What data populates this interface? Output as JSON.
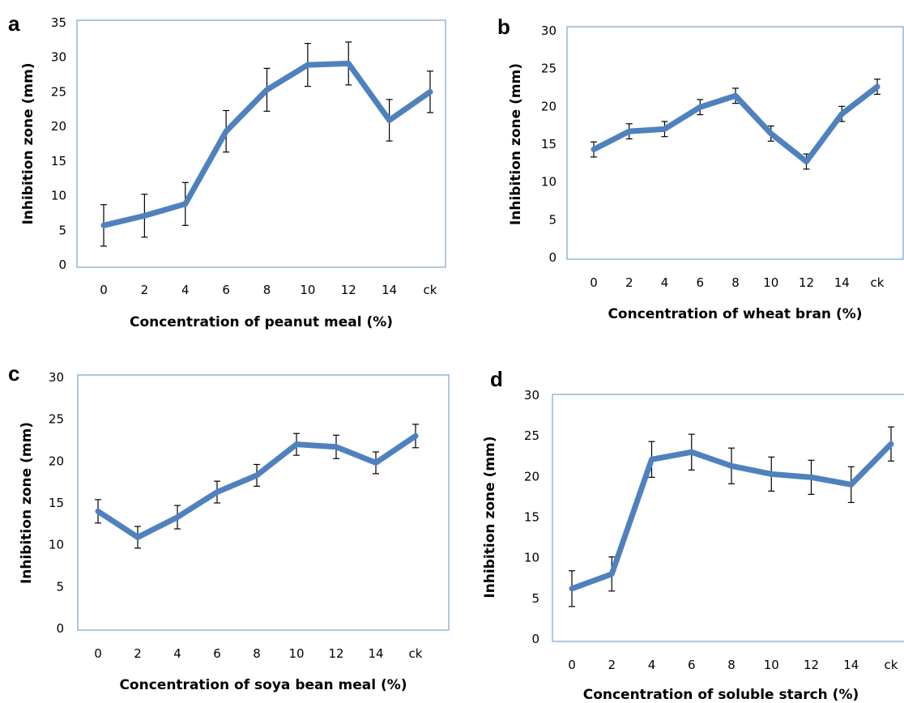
{
  "figure": {
    "line_color": "#4f81bd",
    "frame_color": "#7aa3cf",
    "error_bar_color": "#000000"
  },
  "chart_data": [
    {
      "panel": "a",
      "type": "line",
      "categories": [
        "0",
        "2",
        "4",
        "6",
        "8",
        "10",
        "12",
        "14",
        "ck"
      ],
      "series": [
        {
          "values": [
            5.7,
            7.1,
            8.8,
            19.3,
            25.3,
            28.9,
            29.1,
            20.9,
            25.0
          ],
          "errors": [
            3.0,
            3.1,
            3.1,
            3.0,
            3.1,
            3.1,
            3.1,
            3.0,
            3.0
          ]
        }
      ],
      "xlabel": "Concentration of peanut meal (%)",
      "ylabel": "Inhibition zone (mm)",
      "ylim": [
        0,
        35
      ],
      "yticks": [
        0,
        5,
        10,
        15,
        20,
        25,
        30,
        35
      ],
      "grid": false
    },
    {
      "panel": "b",
      "type": "line",
      "categories": [
        "0",
        "2",
        "4",
        "6",
        "8",
        "10",
        "12",
        "14",
        "ck"
      ],
      "series": [
        {
          "values": [
            14.3,
            16.7,
            17.0,
            19.9,
            21.4,
            16.4,
            12.7,
            19.0,
            22.6
          ],
          "errors": [
            1.0,
            1.0,
            1.0,
            1.0,
            1.0,
            1.0,
            1.0,
            1.0,
            1.0
          ]
        }
      ],
      "xlabel": "Concentration of wheat bran  (%)",
      "ylabel": "Inhibition zone (mm)",
      "ylim": [
        0,
        30
      ],
      "yticks": [
        0,
        5,
        10,
        15,
        20,
        25,
        30
      ],
      "grid": false
    },
    {
      "panel": "c",
      "type": "line",
      "categories": [
        "0",
        "2",
        "4",
        "6",
        "8",
        "10",
        "12",
        "14",
        "ck"
      ],
      "series": [
        {
          "values": [
            14.0,
            10.9,
            13.3,
            16.3,
            18.3,
            22.0,
            21.7,
            19.8,
            23.0
          ],
          "errors": [
            1.4,
            1.3,
            1.4,
            1.3,
            1.3,
            1.3,
            1.4,
            1.3,
            1.4
          ]
        }
      ],
      "xlabel": "Concentration of soya bean meal (%)",
      "ylabel": "Inhibition zone (mm)",
      "ylim": [
        0,
        30
      ],
      "yticks": [
        0,
        5,
        10,
        15,
        20,
        25,
        30
      ],
      "grid": false
    },
    {
      "panel": "d",
      "type": "line",
      "categories": [
        "0",
        "2",
        "4",
        "6",
        "8",
        "10",
        "12",
        "14",
        "ck"
      ],
      "series": [
        {
          "values": [
            6.2,
            8.0,
            22.1,
            23.0,
            21.3,
            20.3,
            19.9,
            19.0,
            24.0
          ],
          "errors": [
            2.2,
            2.1,
            2.2,
            2.2,
            2.2,
            2.1,
            2.1,
            2.2,
            2.1
          ]
        }
      ],
      "xlabel": "Concentration of soluble starch  (%)",
      "ylabel": "Inhibition zone (mm)",
      "ylim": [
        0,
        30
      ],
      "yticks": [
        0,
        5,
        10,
        15,
        20,
        25,
        30
      ],
      "grid": false
    }
  ]
}
